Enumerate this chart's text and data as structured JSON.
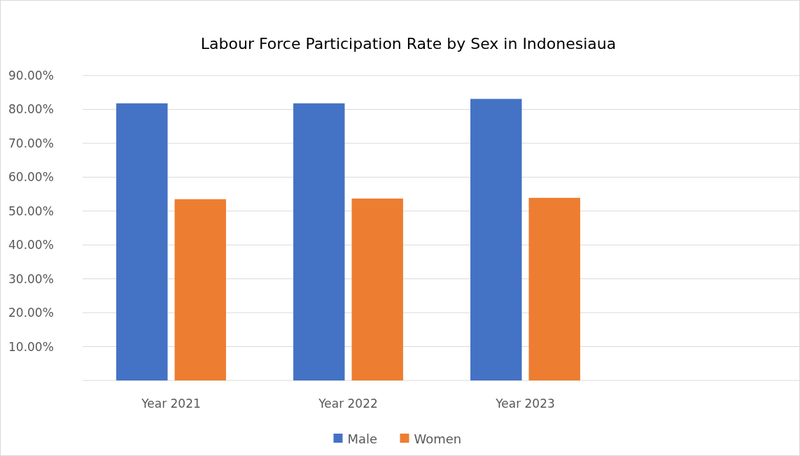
{
  "chart_data": {
    "type": "bar",
    "title": "Labour Force Participation Rate by Sex in Indonesiaua",
    "categories": [
      "Year 2021",
      "Year 2022",
      "Year 2023",
      null
    ],
    "series": [
      {
        "name": "Male",
        "color": "#4472c4",
        "values": [
          81.8,
          81.8,
          83.1,
          null
        ]
      },
      {
        "name": "Women",
        "color": "#ed7d31",
        "values": [
          53.5,
          53.7,
          53.9,
          null
        ]
      }
    ],
    "ylim": [
      0,
      90
    ],
    "yticks": [
      {
        "value": 10,
        "label": "10.00%"
      },
      {
        "value": 20,
        "label": "20.00%"
      },
      {
        "value": 30,
        "label": "30.00%"
      },
      {
        "value": 40,
        "label": "40.00%"
      },
      {
        "value": 50,
        "label": "50.00%"
      },
      {
        "value": 60,
        "label": "60.00%"
      },
      {
        "value": 70,
        "label": "70.00%"
      },
      {
        "value": 80,
        "label": "80.00%"
      },
      {
        "value": 90,
        "label": "90.00%"
      }
    ],
    "grid": "y",
    "legend": "bottom"
  }
}
